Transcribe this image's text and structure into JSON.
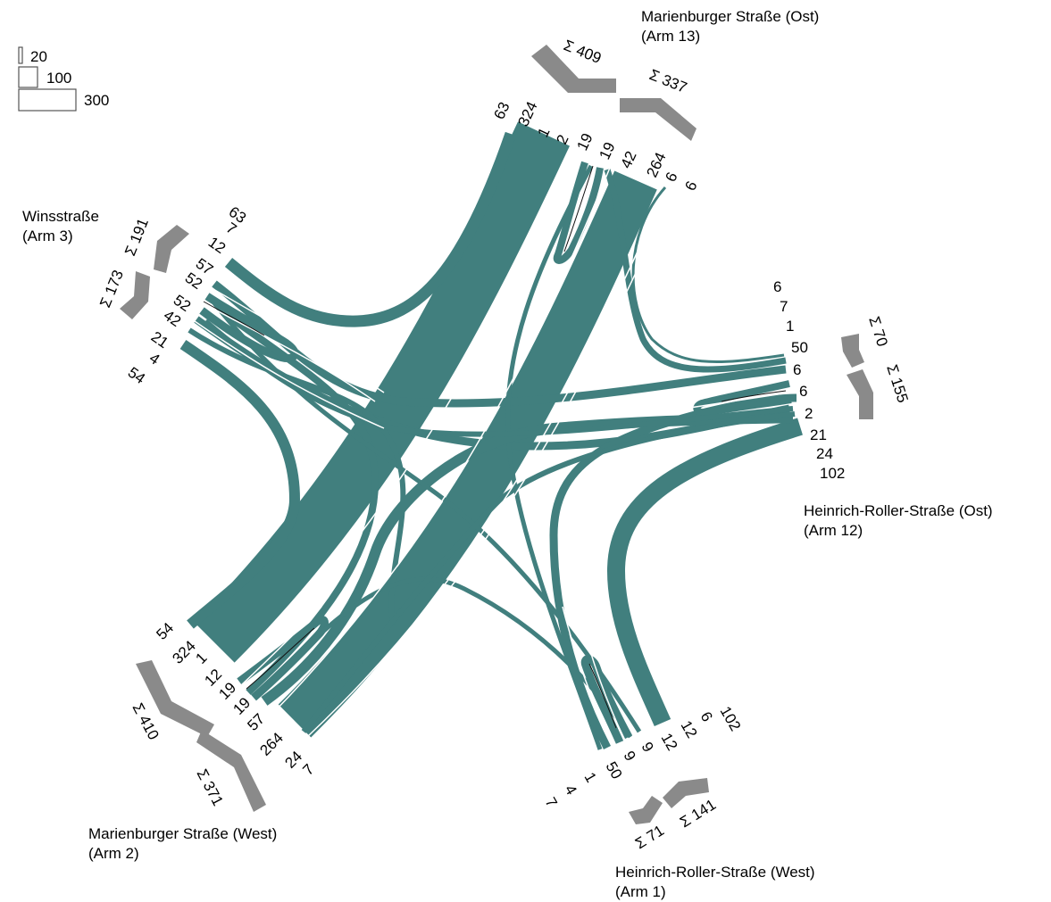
{
  "colors": {
    "stream": "#417f7e",
    "sum_arrow": "#8a8a8a",
    "text": "#1a1a1a",
    "legend_stroke": "#555555"
  },
  "legend": {
    "values": [
      "20",
      "100",
      "300"
    ]
  },
  "arms": {
    "arm13": {
      "name": "Marienburger Straße (Ost)",
      "sub": "(Arm 13)",
      "sum_in": "Σ 409",
      "sum_out": "Σ 337",
      "numbers": [
        "63",
        "324",
        "1",
        "2",
        "19",
        "19",
        "42",
        "264",
        "6",
        "6"
      ]
    },
    "arm3": {
      "name": "Winsstraße",
      "sub": "(Arm 3)",
      "sum_in": "Σ 191",
      "sum_out": "Σ 173",
      "numbers": [
        "63",
        "7",
        "12",
        "57",
        "52",
        "52",
        "42",
        "21",
        "4",
        "54"
      ]
    },
    "arm12": {
      "name": "Heinrich-Roller-Straße (Ost)",
      "sub": "(Arm 12)",
      "sum_in": "Σ 70",
      "sum_out": "Σ 155",
      "numbers": [
        "6",
        "7",
        "1",
        "50",
        "6",
        "6",
        "2",
        "21",
        "24",
        "102"
      ]
    },
    "arm2": {
      "name": "Marienburger Straße (West)",
      "sub": "(Arm 2)",
      "sum_in": "Σ 410",
      "sum_out": "Σ 371",
      "numbers": [
        "54",
        "324",
        "1",
        "12",
        "19",
        "19",
        "57",
        "264",
        "24",
        "7"
      ]
    },
    "arm1": {
      "name": "Heinrich-Roller-Straße (West)",
      "sub": "(Arm 1)",
      "sum_in": "Σ 71",
      "sum_out": "Σ 141",
      "numbers": [
        "7",
        "4",
        "1",
        "50",
        "9",
        "9",
        "12",
        "12",
        "6",
        "102"
      ]
    }
  }
}
